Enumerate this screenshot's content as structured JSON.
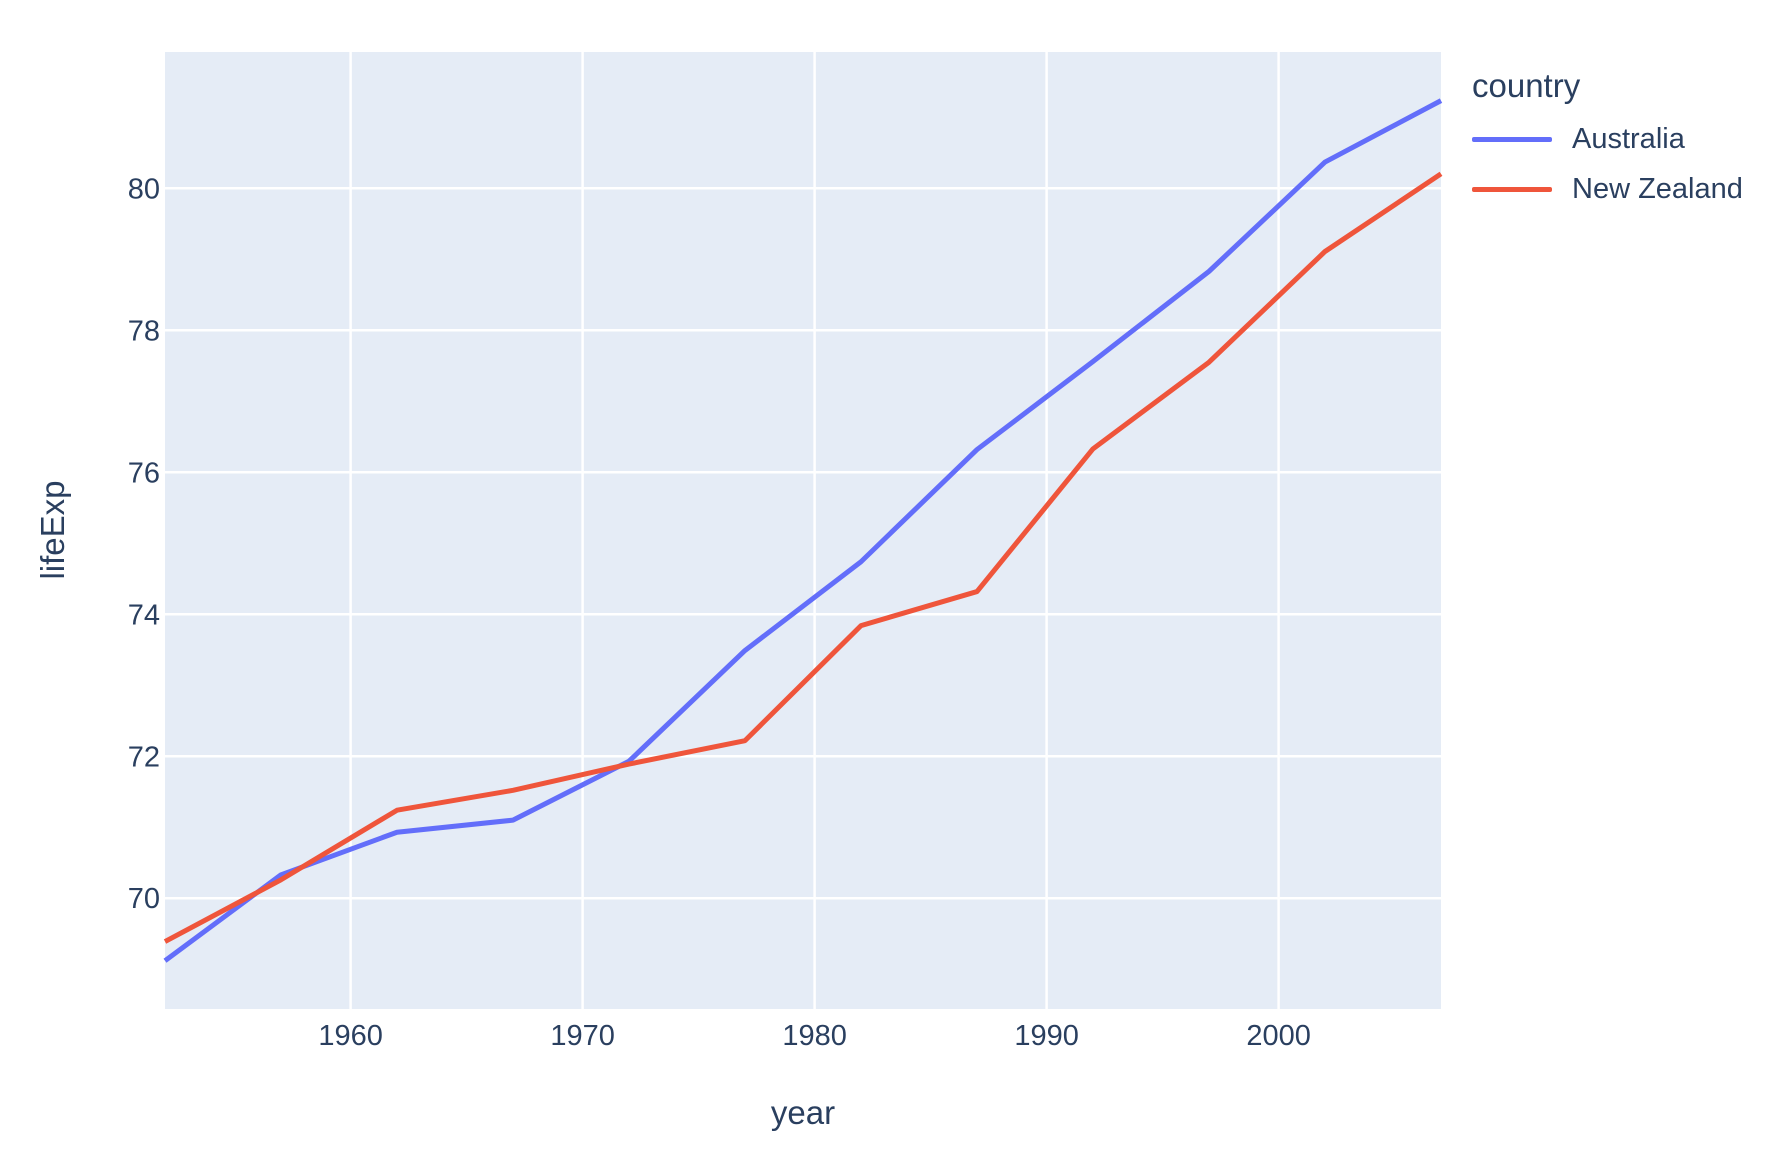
{
  "chart_data": {
    "type": "line",
    "title": "",
    "xlabel": "year",
    "ylabel": "lifeExp",
    "legend_title": "country",
    "legend_position": "right",
    "grid": true,
    "plot_bg_color": "#E5ECF6",
    "grid_color": "#FFFFFF",
    "text_color": "#2a3f5f",
    "x": [
      1952,
      1957,
      1962,
      1967,
      1972,
      1977,
      1982,
      1987,
      1992,
      1997,
      2002,
      2007
    ],
    "series": [
      {
        "name": "Australia",
        "color": "#636EFA",
        "values": [
          69.12,
          70.33,
          70.93,
          71.1,
          71.93,
          73.49,
          74.74,
          76.32,
          77.56,
          78.83,
          80.37,
          81.235
        ]
      },
      {
        "name": "New Zealand",
        "color": "#EF553B",
        "values": [
          69.39,
          70.26,
          71.24,
          71.52,
          71.89,
          72.22,
          73.84,
          74.32,
          76.33,
          77.55,
          79.11,
          80.204
        ]
      }
    ],
    "xlim": [
      1952,
      2007
    ],
    "ylim": [
      68.44,
      81.92
    ],
    "xticks": [
      1960,
      1970,
      1980,
      1990,
      2000
    ],
    "yticks": [
      70,
      72,
      74,
      76,
      78,
      80
    ]
  }
}
